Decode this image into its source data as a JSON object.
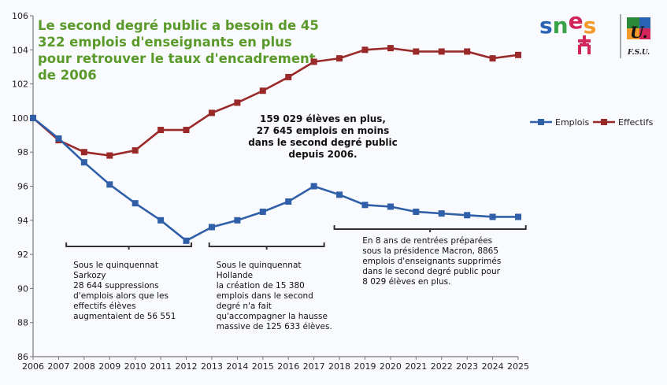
{
  "chart_data": {
    "type": "line",
    "title": "Le second degré public a besoin de 45 322 emplois d'enseignants en plus pour retrouver le taux d'encadrement de 2006",
    "title_lines": [
      "Le second degré public a besoin de 45",
      "322 emplois d'enseignants en plus",
      "pour retrouver le taux d'encadrement",
      "de 2006"
    ],
    "x": [
      2006,
      2007,
      2008,
      2009,
      2010,
      2011,
      2012,
      2013,
      2014,
      2015,
      2016,
      2017,
      2018,
      2019,
      2020,
      2021,
      2022,
      2023,
      2024,
      2025
    ],
    "series": [
      {
        "name": "Emplois",
        "color": "#2f5fa8",
        "values": [
          100,
          98.8,
          97.4,
          96.1,
          95.0,
          94.0,
          92.8,
          93.6,
          94.0,
          94.5,
          95.1,
          96.0,
          95.5,
          94.9,
          94.8,
          94.5,
          94.4,
          94.3,
          94.2,
          94.2
        ]
      },
      {
        "name": "Effectifs",
        "color": "#9a2a2a",
        "values": [
          100,
          98.7,
          98.0,
          97.8,
          98.1,
          99.3,
          99.3,
          100.3,
          100.9,
          101.6,
          102.4,
          103.3,
          103.5,
          104.0,
          104.1,
          103.9,
          103.9,
          103.9,
          103.5,
          103.7
        ]
      }
    ],
    "ylim": [
      86,
      106
    ],
    "yticks": [
      86,
      88,
      90,
      92,
      94,
      96,
      98,
      100,
      102,
      104,
      106
    ],
    "xlabel": "",
    "ylabel": "",
    "grid": false,
    "legend_position": "right",
    "center_annotation": [
      "159 029 élèves en plus,",
      "27 645 emplois en moins",
      "dans le second degré public",
      "depuis 2006."
    ],
    "annotations": [
      {
        "from": 2007.3,
        "to": 2012.2,
        "lines": [
          "Sous le quinquennat",
          "Sarkozy",
          "28 644 suppressions",
          "d'emplois alors que les",
          "effectifs élèves",
          "augmentaient de 56 551"
        ]
      },
      {
        "from": 2012.9,
        "to": 2017.4,
        "lines": [
          "Sous le quinquennat",
          "Hollande",
          "la création de 15 380",
          "emplois dans le second",
          "degré n'a fait",
          "qu'accompagner la hausse",
          "massive de 125 633 élèves."
        ]
      },
      {
        "from": 2017.8,
        "to": 2025.3,
        "lines": [
          "En 8 ans de rentrées préparées",
          "sous la présidence Macron, 8865",
          "emplois d'enseignants supprimés",
          "dans le second degré public pour",
          "8 029 élèves en plus."
        ]
      }
    ]
  },
  "logo": {
    "snes": "snes",
    "fsu": "F.S.U.",
    "u": "U."
  }
}
